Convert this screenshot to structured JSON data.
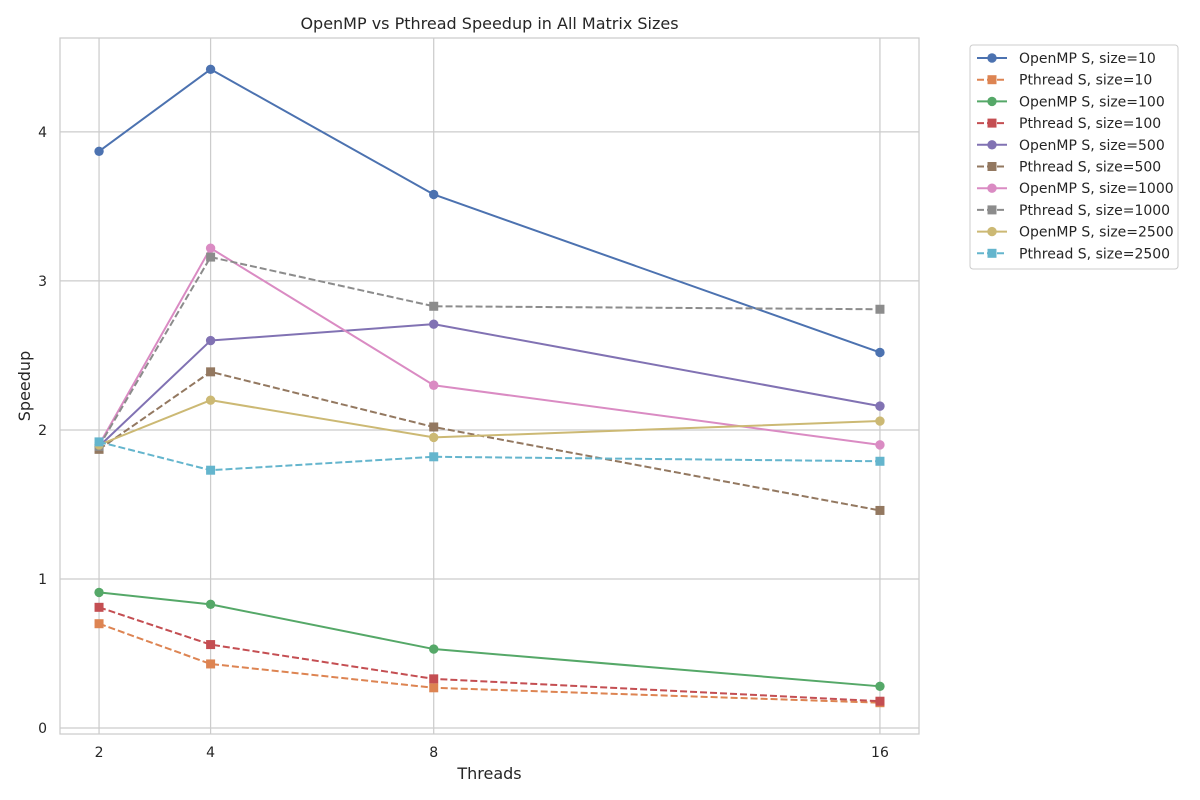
{
  "chart_data": {
    "type": "line",
    "title": "OpenMP vs Pthread Speedup in All Matrix Sizes",
    "xlabel": "Threads",
    "ylabel": "Speedup",
    "x": [
      2,
      4,
      8,
      16
    ],
    "xticks": [
      "2",
      "4",
      "8",
      "16"
    ],
    "yticks": [
      "0",
      "1",
      "2",
      "3",
      "4"
    ],
    "xlim": [
      1.3,
      16.7
    ],
    "ylim": [
      -0.04,
      4.63
    ],
    "grid": true,
    "legend_position": "outside top-right",
    "series": [
      {
        "name": "OpenMP S, size=10",
        "values": [
          3.87,
          4.42,
          3.58,
          2.52
        ],
        "color": "#4c72b0",
        "style": "solid",
        "marker": "circle"
      },
      {
        "name": "Pthread S, size=10",
        "values": [
          0.7,
          0.43,
          0.27,
          0.17
        ],
        "color": "#dd8452",
        "style": "dashed",
        "marker": "square"
      },
      {
        "name": "OpenMP S, size=100",
        "values": [
          0.91,
          0.83,
          0.53,
          0.28
        ],
        "color": "#55a868",
        "style": "solid",
        "marker": "circle"
      },
      {
        "name": "Pthread S, size=100",
        "values": [
          0.81,
          0.56,
          0.33,
          0.18
        ],
        "color": "#c44e52",
        "style": "dashed",
        "marker": "square"
      },
      {
        "name": "OpenMP S, size=500",
        "values": [
          1.89,
          2.6,
          2.71,
          2.16
        ],
        "color": "#8172b3",
        "style": "solid",
        "marker": "circle"
      },
      {
        "name": "Pthread S, size=500",
        "values": [
          1.87,
          2.39,
          2.02,
          1.46
        ],
        "color": "#937860",
        "style": "dashed",
        "marker": "square"
      },
      {
        "name": "OpenMP S, size=1000",
        "values": [
          1.9,
          3.22,
          2.3,
          1.9
        ],
        "color": "#da8bc3",
        "style": "solid",
        "marker": "circle"
      },
      {
        "name": "Pthread S, size=1000",
        "values": [
          1.89,
          3.16,
          2.83,
          2.81
        ],
        "color": "#8c8c8c",
        "style": "dashed",
        "marker": "square"
      },
      {
        "name": "OpenMP S, size=2500",
        "values": [
          1.9,
          2.2,
          1.95,
          2.06
        ],
        "color": "#ccb974",
        "style": "solid",
        "marker": "circle"
      },
      {
        "name": "Pthread S, size=2500",
        "values": [
          1.92,
          1.73,
          1.82,
          1.79
        ],
        "color": "#64b5cd",
        "style": "dashed",
        "marker": "square"
      }
    ]
  }
}
